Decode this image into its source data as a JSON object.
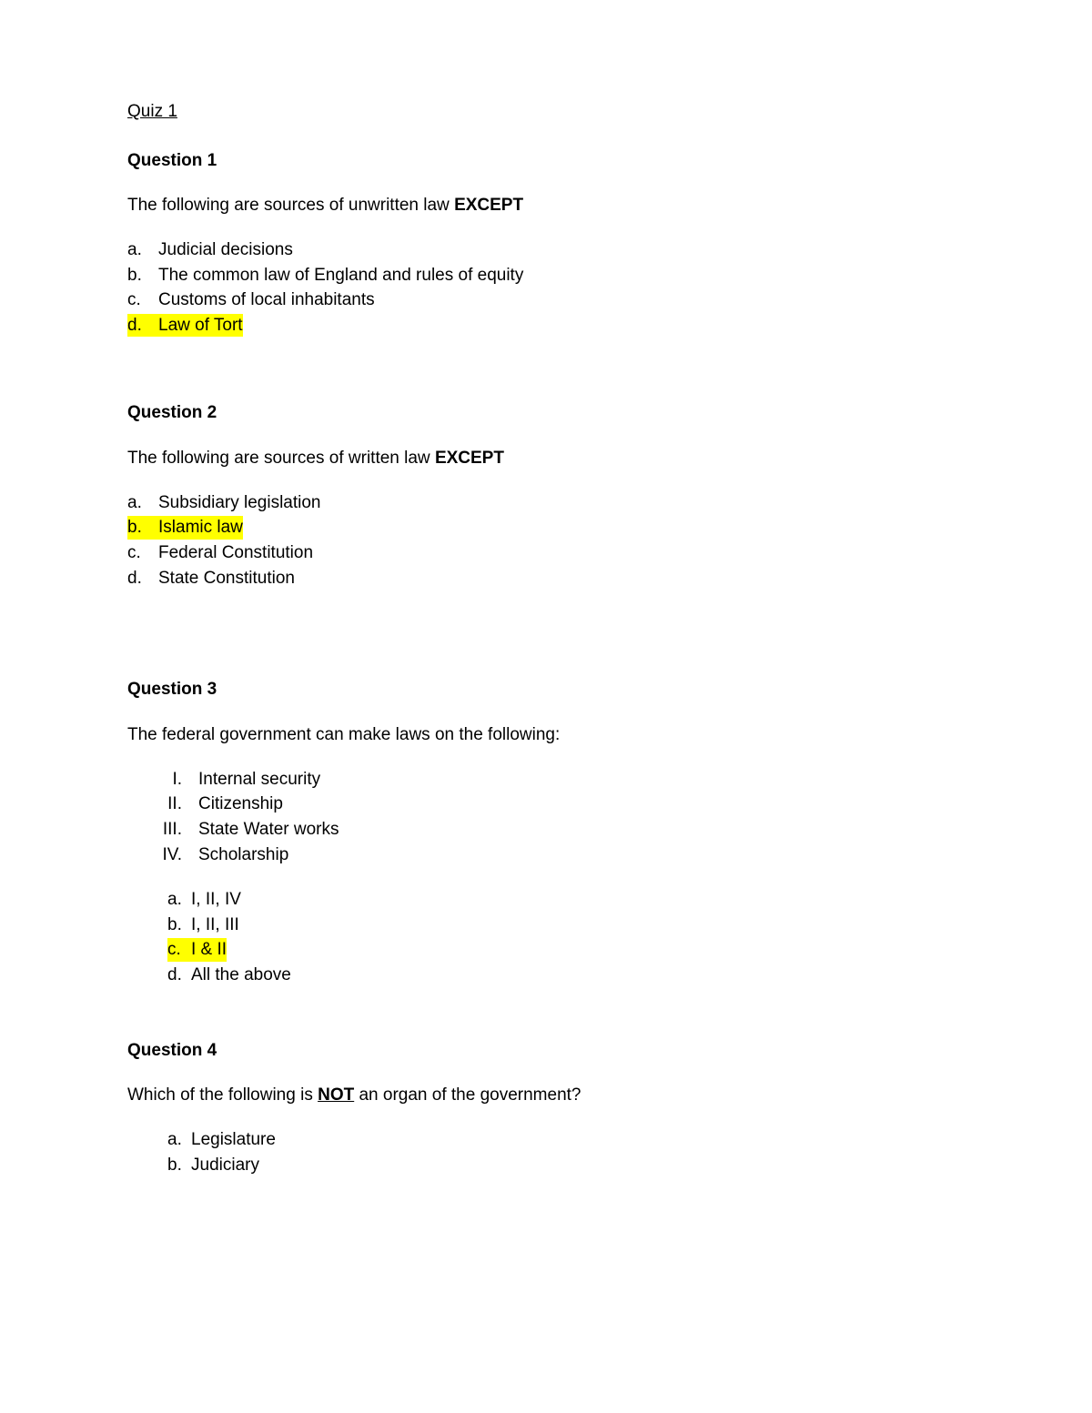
{
  "title": "Quiz 1",
  "highlight_color": "#ffff00",
  "background_color": "#ffffff",
  "text_color": "#000000",
  "font_family": "Arial",
  "font_size_pt": 14,
  "questions": [
    {
      "heading": "Question 1",
      "prompt_pre": "The following are sources of unwritten law ",
      "prompt_bold": "EXCEPT",
      "prompt_post": "",
      "options": [
        {
          "marker": "a.",
          "text": "Judicial decisions",
          "highlighted": false
        },
        {
          "marker": "b.",
          "text": "The common law of England and rules of equity",
          "highlighted": false
        },
        {
          "marker": "c.",
          "text": "Customs of local inhabitants",
          "highlighted": false
        },
        {
          "marker": "d.",
          "text": "Law of Tort",
          "highlighted": true
        }
      ]
    },
    {
      "heading": "Question 2",
      "prompt_pre": "The following are sources of written law ",
      "prompt_bold": "EXCEPT",
      "prompt_post": "",
      "options": [
        {
          "marker": "a.",
          "text": "Subsidiary legislation",
          "highlighted": false
        },
        {
          "marker": "b.",
          "text": "Islamic law",
          "highlighted": true
        },
        {
          "marker": "c.",
          "text": "Federal Constitution",
          "highlighted": false
        },
        {
          "marker": "d.",
          "text": "State Constitution",
          "highlighted": false
        }
      ]
    },
    {
      "heading": "Question 3",
      "prompt_pre": "The federal government can make laws on the following:",
      "prompt_bold": "",
      "prompt_post": "",
      "roman": [
        {
          "marker": "I.",
          "text": "Internal security"
        },
        {
          "marker": "II.",
          "text": "Citizenship"
        },
        {
          "marker": "III.",
          "text": "State Water works"
        },
        {
          "marker": "IV.",
          "text": "Scholarship"
        }
      ],
      "sub_options": [
        {
          "marker": "a.",
          "text": "I, II, IV",
          "highlighted": false
        },
        {
          "marker": "b.",
          "text": "I, II, III",
          "highlighted": false
        },
        {
          "marker": "c.",
          "text": "I & II",
          "highlighted": true
        },
        {
          "marker": "d.",
          "text": "All the above",
          "highlighted": false
        }
      ]
    },
    {
      "heading": "Question 4",
      "prompt_pre": "Which of the following is ",
      "prompt_bold_underline": "NOT",
      "prompt_post": " an organ of the government?",
      "sub_options": [
        {
          "marker": "a.",
          "text": "Legislature",
          "highlighted": false
        },
        {
          "marker": "b.",
          "text": "Judiciary",
          "highlighted": false
        }
      ]
    }
  ]
}
